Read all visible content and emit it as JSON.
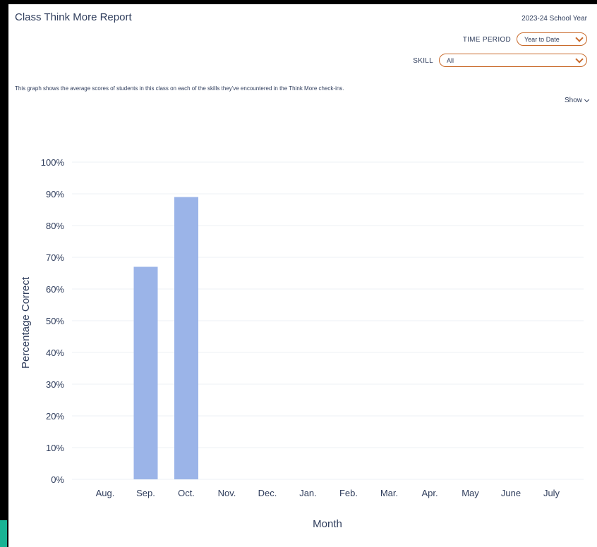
{
  "header": {
    "title": "Class Think More Report",
    "school_year": "2023-24 School Year"
  },
  "filters": {
    "time_period_label": "TIME PERIOD",
    "time_period_value": "Year to Date",
    "skill_label": "SKILL",
    "skill_value": "All"
  },
  "description": "This graph shows the average scores of students in this class on each of the skills they've encountered in the Think More check-ins.",
  "show_label": "Show",
  "colors": {
    "bar": "#9bb4e8",
    "accent": "#c96a2b",
    "text": "#2f3d5c"
  },
  "chart_data": {
    "type": "bar",
    "categories": [
      "Aug.",
      "Sep.",
      "Oct.",
      "Nov.",
      "Dec.",
      "Jan.",
      "Feb.",
      "Mar.",
      "Apr.",
      "May",
      "June",
      "July"
    ],
    "values": [
      null,
      67,
      89,
      null,
      null,
      null,
      null,
      null,
      null,
      null,
      null,
      null
    ],
    "yticks": [
      "0%",
      "10%",
      "20%",
      "30%",
      "40%",
      "50%",
      "60%",
      "70%",
      "80%",
      "90%",
      "100%"
    ],
    "xlabel": "Month",
    "ylabel": "Percentage Correct",
    "ylim": [
      0,
      100
    ],
    "grid": true,
    "legend": "none"
  }
}
